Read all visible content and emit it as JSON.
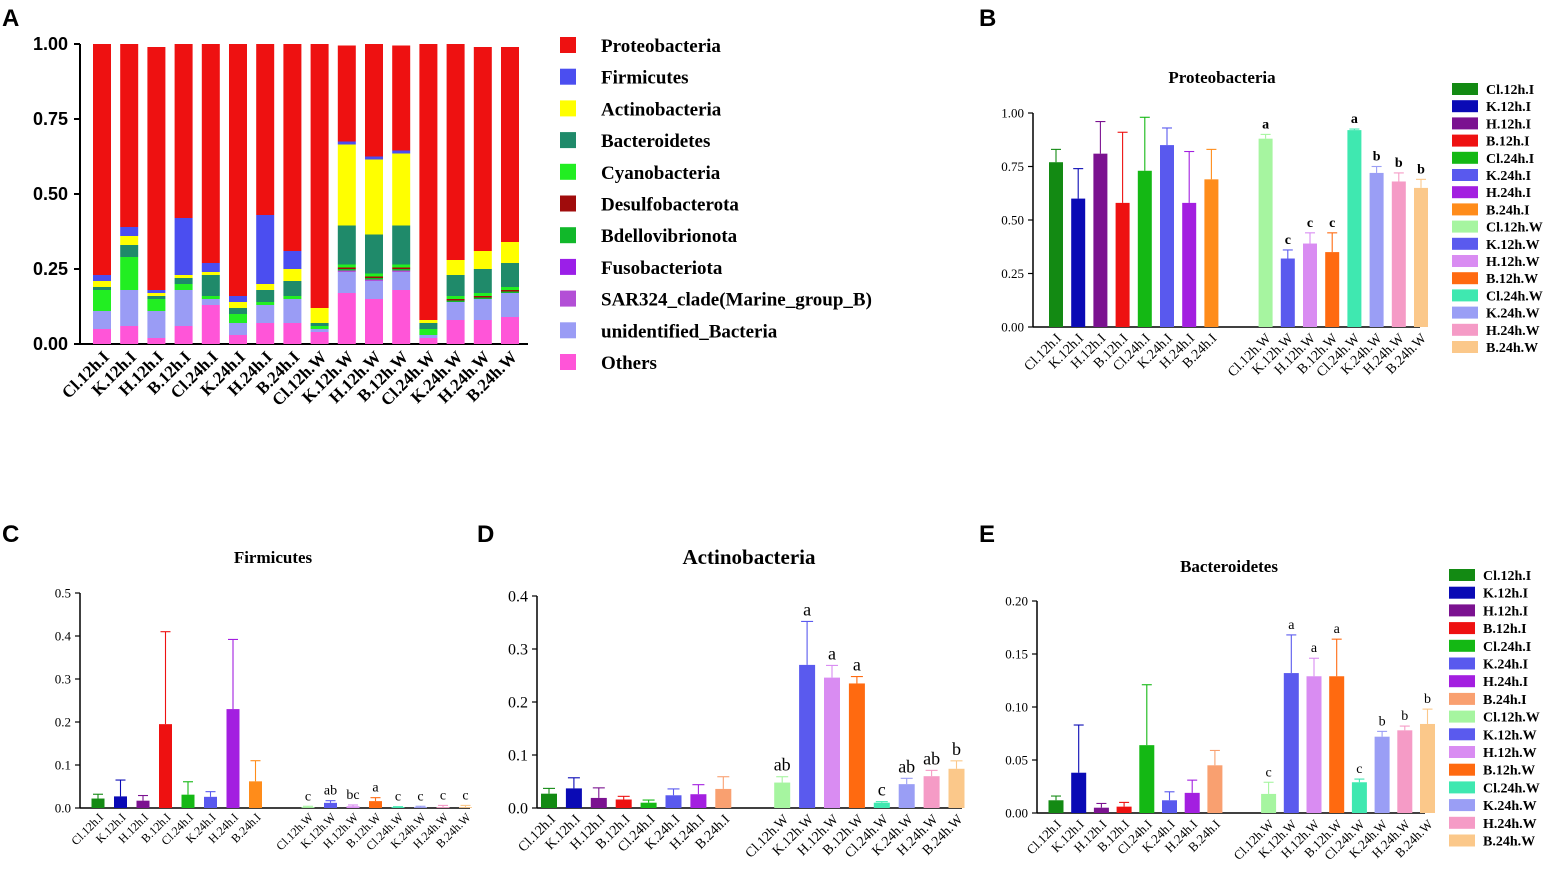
{
  "figure": {
    "panel_labels": [
      "A",
      "B",
      "C",
      "D",
      "E"
    ]
  },
  "chart_data": [
    {
      "id": "A",
      "type": "bar",
      "stacked": true,
      "title": "",
      "xlabel": "",
      "ylabel": "",
      "ylim": [
        0,
        1
      ],
      "yticks": [
        "0.00",
        "0.25",
        "0.50",
        "0.75",
        "1.00"
      ],
      "categories": [
        "Cl.12h.I",
        "K.12h.I",
        "H.12h.I",
        "B.12h.I",
        "Cl.24h.I",
        "K.24h.I",
        "H.24h.I",
        "B.24h.I",
        "Cl.12h.W",
        "K.12h.W",
        "H.12h.W",
        "B.12h.W",
        "Cl.24h.W",
        "K.24h.W",
        "H.24h.W",
        "B.24h.W"
      ],
      "legend_position": "right",
      "series": [
        {
          "name": "Others",
          "color": "#ff55d8",
          "values": [
            0.05,
            0.06,
            0.02,
            0.06,
            0.13,
            0.03,
            0.07,
            0.07,
            0.04,
            0.17,
            0.15,
            0.18,
            0.02,
            0.08,
            0.08,
            0.09
          ]
        },
        {
          "name": "unidentified_Bacteria",
          "color": "#9a9cf5",
          "values": [
            0.06,
            0.12,
            0.09,
            0.12,
            0.02,
            0.04,
            0.06,
            0.08,
            0.01,
            0.07,
            0.06,
            0.06,
            0.01,
            0.06,
            0.07,
            0.08
          ]
        },
        {
          "name": "SAR324_clade(Marine_group_B)",
          "color": "#b34fd6",
          "values": [
            0.0,
            0.0,
            0.0,
            0.0,
            0.0,
            0.0,
            0.0,
            0.0,
            0.0,
            0.005,
            0.005,
            0.005,
            0.0,
            0.0,
            0.0,
            0.0
          ]
        },
        {
          "name": "Fusobacteriota",
          "color": "#9b1fe8",
          "values": [
            0.0,
            0.0,
            0.0,
            0.0,
            0.0,
            0.0,
            0.0,
            0.0,
            0.0,
            0.0,
            0.0,
            0.0,
            0.0,
            0.0,
            0.0,
            0.0
          ]
        },
        {
          "name": "Bdellovibrionota",
          "color": "#11b82a",
          "values": [
            0.0,
            0.0,
            0.0,
            0.0,
            0.0,
            0.0,
            0.0,
            0.0,
            0.0,
            0.005,
            0.005,
            0.005,
            0.0,
            0.005,
            0.005,
            0.005
          ]
        },
        {
          "name": "Desulfobacterota",
          "color": "#a00c0c",
          "values": [
            0.0,
            0.0,
            0.0,
            0.0,
            0.0,
            0.0,
            0.0,
            0.0,
            0.0,
            0.005,
            0.005,
            0.005,
            0.0,
            0.005,
            0.005,
            0.005
          ]
        },
        {
          "name": "Cyanobacteria",
          "color": "#22ee22",
          "values": [
            0.07,
            0.11,
            0.04,
            0.02,
            0.01,
            0.03,
            0.01,
            0.01,
            0.01,
            0.01,
            0.01,
            0.01,
            0.02,
            0.01,
            0.01,
            0.01
          ]
        },
        {
          "name": "Bacteroidetes",
          "color": "#1f8a6a",
          "values": [
            0.01,
            0.04,
            0.01,
            0.02,
            0.07,
            0.02,
            0.04,
            0.05,
            0.01,
            0.13,
            0.13,
            0.13,
            0.02,
            0.07,
            0.08,
            0.08
          ]
        },
        {
          "name": "Actinobacteria",
          "color": "#ffff00",
          "values": [
            0.02,
            0.03,
            0.01,
            0.01,
            0.01,
            0.02,
            0.02,
            0.04,
            0.05,
            0.27,
            0.25,
            0.24,
            0.01,
            0.05,
            0.06,
            0.07
          ]
        },
        {
          "name": "Firmicutes",
          "color": "#4b4ef0",
          "values": [
            0.02,
            0.03,
            0.01,
            0.19,
            0.03,
            0.02,
            0.23,
            0.06,
            0.0,
            0.01,
            0.01,
            0.01,
            0.0,
            0.0,
            0.0,
            0.0
          ]
        },
        {
          "name": "Proteobacteria",
          "color": "#ee1111",
          "values": [
            0.77,
            0.61,
            0.81,
            0.58,
            0.73,
            0.84,
            0.57,
            0.69,
            0.88,
            0.32,
            0.39,
            0.35,
            0.93,
            0.72,
            0.68,
            0.65
          ]
        }
      ],
      "legend_order": [
        "Proteobacteria",
        "Firmicutes",
        "Actinobacteria",
        "Bacteroidetes",
        "Cyanobacteria",
        "Desulfobacterota",
        "Bdellovibrionota",
        "Fusobacteriota",
        "SAR324_clade(Marine_group_B)",
        "unidentified_Bacteria",
        "Others"
      ]
    },
    {
      "id": "B",
      "type": "bar",
      "title": "Proteobacteria",
      "ylim": [
        0,
        1
      ],
      "yticks": [
        "0.00",
        "0.25",
        "0.50",
        "0.75",
        "1.00"
      ],
      "categories": [
        "Cl.12h.I",
        "K.12h.I",
        "H.12h.I",
        "B.12h.I",
        "Cl.24h.I",
        "K.24h.I",
        "H.24h.I",
        "B.24h.I",
        "Cl.12h.W",
        "K.12h.W",
        "H.12h.W",
        "B.12h.W",
        "Cl.24h.W",
        "K.24h.W",
        "H.24h.W",
        "B.24h.W"
      ],
      "colors": [
        "#138a13",
        "#0a0ab5",
        "#7b1290",
        "#ee1111",
        "#14b814",
        "#5959ee",
        "#a31fe0",
        "#ff8c1a",
        "#a6f5a0",
        "#5a5aee",
        "#d98cf2",
        "#ff6a10",
        "#3fe8b0",
        "#9a9ef5",
        "#f59bc6",
        "#fbc88a"
      ],
      "values": [
        0.77,
        0.6,
        0.81,
        0.58,
        0.73,
        0.85,
        0.58,
        0.69,
        0.88,
        0.32,
        0.39,
        0.35,
        0.92,
        0.72,
        0.68,
        0.65
      ],
      "errors": [
        0.06,
        0.14,
        0.15,
        0.33,
        0.25,
        0.08,
        0.24,
        0.14,
        0.02,
        0.04,
        0.05,
        0.09,
        0.005,
        0.03,
        0.04,
        0.04
      ],
      "sig_labels": [
        "",
        "",
        "",
        "",
        "",
        "",
        "",
        "",
        "a",
        "c",
        "c",
        "c",
        "a",
        "b",
        "b",
        "b"
      ],
      "legend_position": "right"
    },
    {
      "id": "C",
      "type": "bar",
      "title": "Firmicutes",
      "ylim": [
        0,
        0.5
      ],
      "yticks": [
        "0.0",
        "0.1",
        "0.2",
        "0.3",
        "0.4",
        "0.5"
      ],
      "categories": [
        "Cl.12h.I",
        "K.12h.I",
        "H.12h.I",
        "B.12h.I",
        "Cl.24h.I",
        "K.24h.I",
        "H.24h.I",
        "B.24h.I",
        "Cl.12h.W",
        "K.12h.W",
        "H.12h.W",
        "B.12h.W",
        "Cl.24h.W",
        "K.24h.W",
        "H.24h.W",
        "B.24h.W"
      ],
      "colors": [
        "#138a13",
        "#0a0ab5",
        "#7b1290",
        "#ee1111",
        "#14b814",
        "#5959ee",
        "#a31fe0",
        "#ff8c1a",
        "#a6f5a0",
        "#5a5aee",
        "#d98cf2",
        "#ff6a10",
        "#3fe8b0",
        "#9a9ef5",
        "#f59bc6",
        "#fbc88a"
      ],
      "values": [
        0.022,
        0.027,
        0.017,
        0.195,
        0.031,
        0.026,
        0.23,
        0.062,
        0.002,
        0.012,
        0.004,
        0.016,
        0.002,
        0.002,
        0.002,
        0.002
      ],
      "errors": [
        0.01,
        0.038,
        0.012,
        0.215,
        0.03,
        0.012,
        0.162,
        0.048,
        0.002,
        0.005,
        0.003,
        0.008,
        0.001,
        0.002,
        0.004,
        0.004
      ],
      "sig_labels": [
        "",
        "",
        "",
        "",
        "",
        "",
        "",
        "",
        "c",
        "ab",
        "bc",
        "a",
        "c",
        "c",
        "c",
        "c"
      ]
    },
    {
      "id": "D",
      "type": "bar",
      "title": "Actinobacteria",
      "ylim": [
        0,
        0.4
      ],
      "yticks": [
        "0.0",
        "0.1",
        "0.2",
        "0.3",
        "0.4"
      ],
      "categories": [
        "Cl.12h.I",
        "K.12h.I",
        "H.12h.I",
        "B.12h.I",
        "Cl.24h.I",
        "K.24h.I",
        "H.24h.I",
        "B.24h.I",
        "Cl.12h.W",
        "K.12h.W",
        "H.12h.W",
        "B.12h.W",
        "Cl.24h.W",
        "K.24h.W",
        "H.24h.W",
        "B.24h.W"
      ],
      "colors": [
        "#138a13",
        "#0a0ab5",
        "#7b1290",
        "#ee1111",
        "#14b814",
        "#5959ee",
        "#a31fe0",
        "#f9a070",
        "#a6f5a0",
        "#5a5aee",
        "#d98cf2",
        "#ff6a10",
        "#3fe8b0",
        "#9a9ef5",
        "#f59bc6",
        "#fbc88a"
      ],
      "values": [
        0.027,
        0.037,
        0.019,
        0.016,
        0.01,
        0.024,
        0.026,
        0.036,
        0.048,
        0.27,
        0.246,
        0.235,
        0.01,
        0.045,
        0.06,
        0.074
      ],
      "errors": [
        0.01,
        0.02,
        0.019,
        0.006,
        0.005,
        0.012,
        0.018,
        0.023,
        0.011,
        0.082,
        0.023,
        0.013,
        0.002,
        0.011,
        0.011,
        0.015
      ],
      "sig_labels": [
        "",
        "",
        "",
        "",
        "",
        "",
        "",
        "",
        "ab",
        "a",
        "a",
        "a",
        "c",
        "ab",
        "ab",
        "b"
      ]
    },
    {
      "id": "E",
      "type": "bar",
      "title": "Bacteroidetes",
      "ylim": [
        0,
        0.2
      ],
      "yticks": [
        "0.00",
        "0.05",
        "0.10",
        "0.15",
        "0.20"
      ],
      "categories": [
        "Cl.12h.I",
        "K.12h.I",
        "H.12h.I",
        "B.12h.I",
        "Cl.24h.I",
        "K.24h.I",
        "H.24h.I",
        "B.24h.I",
        "Cl.12h.W",
        "K.12h.W",
        "H.12h.W",
        "B.12h.W",
        "Cl.24h.W",
        "K.24h.W",
        "H.24h.W",
        "B.24h.W"
      ],
      "colors": [
        "#138a13",
        "#0a0ab5",
        "#7b1290",
        "#ee1111",
        "#14b814",
        "#5959ee",
        "#a31fe0",
        "#f9a070",
        "#a6f5a0",
        "#5a5aee",
        "#d98cf2",
        "#ff6a10",
        "#3fe8b0",
        "#9a9ef5",
        "#f59bc6",
        "#fbc88a"
      ],
      "values": [
        0.012,
        0.038,
        0.005,
        0.006,
        0.064,
        0.012,
        0.019,
        0.045,
        0.018,
        0.132,
        0.129,
        0.129,
        0.029,
        0.072,
        0.078,
        0.084
      ],
      "errors": [
        0.004,
        0.045,
        0.004,
        0.004,
        0.057,
        0.008,
        0.012,
        0.014,
        0.011,
        0.036,
        0.017,
        0.035,
        0.003,
        0.005,
        0.004,
        0.014
      ],
      "sig_labels": [
        "",
        "",
        "",
        "",
        "",
        "",
        "",
        "",
        "c",
        "a",
        "a",
        "a",
        "c",
        "b",
        "b",
        "b"
      ],
      "legend_position": "right"
    }
  ]
}
